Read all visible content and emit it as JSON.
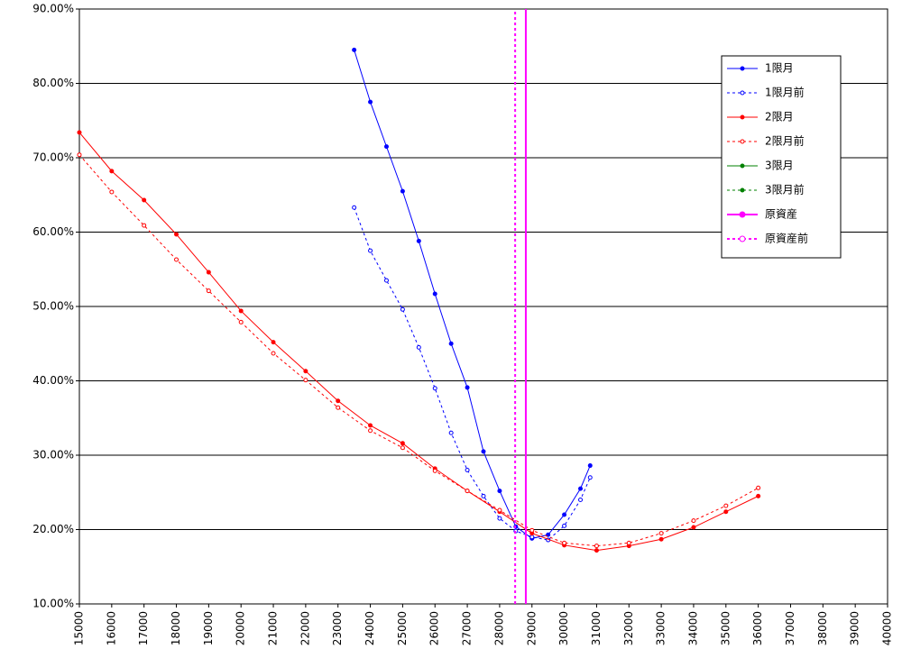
{
  "chart_data": {
    "type": "line",
    "xlim": [
      15000,
      40000
    ],
    "xticks": [
      15000,
      16000,
      17000,
      18000,
      19000,
      20000,
      21000,
      22000,
      23000,
      24000,
      25000,
      26000,
      27000,
      28000,
      29000,
      30000,
      31000,
      32000,
      33000,
      34000,
      35000,
      36000,
      37000,
      38000,
      39000,
      40000
    ],
    "ylim": [
      10,
      90
    ],
    "yticks": [
      {
        "value": 10,
        "label": "10.00%"
      },
      {
        "value": 20,
        "label": "20.00%"
      },
      {
        "value": 30,
        "label": "30.00%"
      },
      {
        "value": 40,
        "label": "40.00%"
      },
      {
        "value": 50,
        "label": "50.00%"
      },
      {
        "value": 60,
        "label": "60.00%"
      },
      {
        "value": 70,
        "label": "70.00%"
      },
      {
        "value": 80,
        "label": "80.00%"
      },
      {
        "value": 90,
        "label": "90.00%"
      }
    ],
    "grid": true,
    "legend": "upper right",
    "series": [
      {
        "name": "1限月",
        "color": "#0000ff",
        "dashed": false,
        "marker": "filled",
        "x": [
          23500,
          24000,
          24500,
          25000,
          25500,
          26000,
          26500,
          27000,
          27500,
          28000,
          28500,
          29000,
          29500,
          30000,
          30500,
          30800
        ],
        "values": [
          84.5,
          77.5,
          71.5,
          65.5,
          58.8,
          51.7,
          45,
          39.1,
          30.5,
          25.2,
          20.4,
          18.8,
          19.3,
          22,
          25.5,
          28.6
        ]
      },
      {
        "name": "1限月前",
        "color": "#0000ff",
        "dashed": true,
        "marker": "open",
        "x": [
          23500,
          24000,
          24500,
          25000,
          25500,
          26000,
          26500,
          27000,
          27500,
          28000,
          28500,
          29000,
          29500,
          30000,
          30500,
          30800
        ],
        "values": [
          63.3,
          57.5,
          53.5,
          49.6,
          44.5,
          39,
          33,
          28,
          24.5,
          21.5,
          19.8,
          19,
          18.6,
          20.5,
          24,
          27
        ]
      },
      {
        "name": "2限月",
        "color": "#ff0000",
        "dashed": false,
        "marker": "filled",
        "x": [
          15000,
          16000,
          17000,
          18000,
          19000,
          20000,
          21000,
          22000,
          23000,
          24000,
          25000,
          26000,
          27000,
          28000,
          29000,
          30000,
          31000,
          32000,
          33000,
          34000,
          35000,
          36000
        ],
        "values": [
          73.4,
          68.2,
          64.3,
          59.7,
          54.6,
          49.4,
          45.2,
          41.3,
          37.3,
          34,
          31.6,
          28.2,
          25.2,
          22.4,
          19.5,
          17.9,
          17.2,
          17.8,
          18.7,
          20.3,
          22.4,
          24.5
        ]
      },
      {
        "name": "2限月前",
        "color": "#ff0000",
        "dashed": true,
        "marker": "open",
        "x": [
          15000,
          16000,
          17000,
          18000,
          19000,
          20000,
          21000,
          22000,
          23000,
          24000,
          25000,
          26000,
          27000,
          28000,
          29000,
          30000,
          31000,
          32000,
          33000,
          34000,
          35000,
          36000
        ],
        "values": [
          70.4,
          65.4,
          60.9,
          56.3,
          52.1,
          47.9,
          43.7,
          40.1,
          36.4,
          33.3,
          31,
          27.9,
          25.2,
          22.6,
          19.9,
          18.2,
          17.8,
          18.2,
          19.5,
          21.2,
          23.2,
          25.6
        ]
      },
      {
        "name": "3限月",
        "color": "#008000",
        "dashed": false,
        "marker": "filled",
        "x": [],
        "values": []
      },
      {
        "name": "3限月前",
        "color": "#008000",
        "dashed": true,
        "marker": "filled",
        "x": [],
        "values": []
      },
      {
        "name": "原資産",
        "color": "#ff00ff",
        "dashed": false,
        "marker": "none",
        "x": [
          28810,
          28810
        ],
        "values": [
          10,
          90
        ]
      },
      {
        "name": "原資産前",
        "color": "#ff00ff",
        "dashed": true,
        "marker": "none",
        "x": [
          28480,
          28480
        ],
        "values": [
          10,
          90
        ]
      }
    ]
  }
}
